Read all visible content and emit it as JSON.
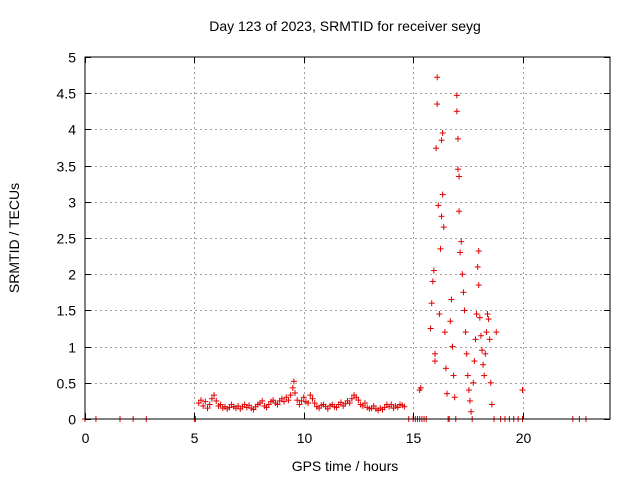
{
  "chart_data": {
    "type": "scatter",
    "title": "Day 123 of 2023, SRMTID for receiver seyg",
    "xlabel": "GPS time / hours",
    "ylabel": "SRMTID / TECUs",
    "xlim": [
      0,
      24
    ],
    "ylim": [
      0,
      5
    ],
    "xticks": [
      0,
      5,
      10,
      15,
      20
    ],
    "xtick_labels": [
      "0",
      "5",
      "10",
      "15",
      "20"
    ],
    "yticks": [
      0,
      0.5,
      1,
      1.5,
      2,
      2.5,
      3,
      3.5,
      4,
      4.5,
      5
    ],
    "ytick_labels": [
      "0",
      "0.5",
      "1",
      "1.5",
      "2",
      "2.5",
      "3",
      "3.5",
      "4",
      "4.5",
      "5"
    ],
    "grid": true,
    "marker": "+",
    "color": "#e00000",
    "series": [
      {
        "name": "SRMTID",
        "points": [
          [
            0.0,
            0.0
          ],
          [
            0.5,
            0.0
          ],
          [
            1.6,
            0.0
          ],
          [
            2.2,
            0.0
          ],
          [
            2.8,
            0.0
          ],
          [
            5.0,
            0.0
          ],
          [
            5.05,
            0.0
          ],
          [
            5.2,
            0.22
          ],
          [
            5.3,
            0.26
          ],
          [
            5.4,
            0.18
          ],
          [
            5.5,
            0.24
          ],
          [
            5.6,
            0.15
          ],
          [
            5.7,
            0.2
          ],
          [
            5.8,
            0.28
          ],
          [
            5.9,
            0.33
          ],
          [
            6.0,
            0.25
          ],
          [
            6.1,
            0.18
          ],
          [
            6.2,
            0.2
          ],
          [
            6.3,
            0.15
          ],
          [
            6.4,
            0.17
          ],
          [
            6.5,
            0.14
          ],
          [
            6.6,
            0.16
          ],
          [
            6.7,
            0.2
          ],
          [
            6.8,
            0.17
          ],
          [
            6.9,
            0.15
          ],
          [
            7.0,
            0.18
          ],
          [
            7.1,
            0.14
          ],
          [
            7.2,
            0.17
          ],
          [
            7.3,
            0.2
          ],
          [
            7.4,
            0.16
          ],
          [
            7.5,
            0.19
          ],
          [
            7.6,
            0.15
          ],
          [
            7.7,
            0.13
          ],
          [
            7.8,
            0.17
          ],
          [
            7.9,
            0.2
          ],
          [
            8.0,
            0.22
          ],
          [
            8.1,
            0.25
          ],
          [
            8.2,
            0.18
          ],
          [
            8.3,
            0.16
          ],
          [
            8.4,
            0.2
          ],
          [
            8.5,
            0.24
          ],
          [
            8.6,
            0.26
          ],
          [
            8.7,
            0.22
          ],
          [
            8.8,
            0.2
          ],
          [
            8.9,
            0.25
          ],
          [
            9.0,
            0.28
          ],
          [
            9.1,
            0.24
          ],
          [
            9.2,
            0.3
          ],
          [
            9.3,
            0.26
          ],
          [
            9.4,
            0.33
          ],
          [
            9.5,
            0.43
          ],
          [
            9.55,
            0.52
          ],
          [
            9.6,
            0.36
          ],
          [
            9.7,
            0.26
          ],
          [
            9.8,
            0.2
          ],
          [
            9.9,
            0.25
          ],
          [
            10.0,
            0.3
          ],
          [
            10.1,
            0.24
          ],
          [
            10.2,
            0.22
          ],
          [
            10.3,
            0.33
          ],
          [
            10.4,
            0.28
          ],
          [
            10.5,
            0.22
          ],
          [
            10.6,
            0.17
          ],
          [
            10.7,
            0.15
          ],
          [
            10.8,
            0.19
          ],
          [
            10.9,
            0.2
          ],
          [
            11.0,
            0.17
          ],
          [
            11.1,
            0.14
          ],
          [
            11.2,
            0.18
          ],
          [
            11.3,
            0.2
          ],
          [
            11.4,
            0.17
          ],
          [
            11.5,
            0.16
          ],
          [
            11.6,
            0.2
          ],
          [
            11.7,
            0.23
          ],
          [
            11.8,
            0.18
          ],
          [
            11.9,
            0.21
          ],
          [
            12.0,
            0.25
          ],
          [
            12.1,
            0.22
          ],
          [
            12.2,
            0.28
          ],
          [
            12.3,
            0.33
          ],
          [
            12.4,
            0.3
          ],
          [
            12.5,
            0.26
          ],
          [
            12.6,
            0.2
          ],
          [
            12.7,
            0.18
          ],
          [
            12.8,
            0.22
          ],
          [
            12.9,
            0.16
          ],
          [
            13.0,
            0.14
          ],
          [
            13.1,
            0.15
          ],
          [
            13.2,
            0.18
          ],
          [
            13.3,
            0.14
          ],
          [
            13.4,
            0.12
          ],
          [
            13.5,
            0.15
          ],
          [
            13.6,
            0.13
          ],
          [
            13.7,
            0.16
          ],
          [
            13.8,
            0.2
          ],
          [
            13.9,
            0.17
          ],
          [
            14.0,
            0.2
          ],
          [
            14.1,
            0.15
          ],
          [
            14.2,
            0.18
          ],
          [
            14.3,
            0.16
          ],
          [
            14.4,
            0.2
          ],
          [
            14.5,
            0.19
          ],
          [
            14.6,
            0.17
          ],
          [
            14.8,
            0.0
          ],
          [
            15.0,
            0.0
          ],
          [
            15.1,
            0.0
          ],
          [
            15.2,
            0.0
          ],
          [
            15.3,
            0.0
          ],
          [
            15.4,
            0.0
          ],
          [
            15.5,
            0.0
          ],
          [
            15.6,
            0.0
          ],
          [
            15.3,
            0.4
          ],
          [
            15.35,
            0.43
          ],
          [
            15.8,
            1.25
          ],
          [
            15.85,
            1.6
          ],
          [
            15.9,
            1.9
          ],
          [
            15.95,
            2.05
          ],
          [
            16.0,
            0.9
          ],
          [
            16.0,
            0.8
          ],
          [
            16.05,
            3.74
          ],
          [
            16.1,
            4.72
          ],
          [
            16.1,
            4.35
          ],
          [
            16.15,
            2.95
          ],
          [
            16.2,
            1.45
          ],
          [
            16.25,
            2.35
          ],
          [
            16.3,
            2.8
          ],
          [
            16.35,
            3.1
          ],
          [
            16.3,
            3.85
          ],
          [
            16.35,
            3.95
          ],
          [
            16.4,
            2.65
          ],
          [
            16.45,
            1.2
          ],
          [
            16.5,
            0.7
          ],
          [
            16.55,
            0.35
          ],
          [
            16.6,
            0.0
          ],
          [
            16.65,
            0.0
          ],
          [
            16.7,
            1.35
          ],
          [
            16.75,
            1.65
          ],
          [
            16.8,
            1.0
          ],
          [
            16.85,
            0.6
          ],
          [
            16.9,
            0.3
          ],
          [
            16.95,
            0.0
          ],
          [
            17.0,
            4.47
          ],
          [
            17.0,
            4.25
          ],
          [
            17.05,
            3.87
          ],
          [
            17.05,
            3.45
          ],
          [
            17.1,
            3.35
          ],
          [
            17.1,
            2.87
          ],
          [
            17.15,
            2.3
          ],
          [
            17.2,
            2.45
          ],
          [
            17.25,
            2.0
          ],
          [
            17.3,
            1.75
          ],
          [
            17.35,
            1.5
          ],
          [
            17.4,
            1.2
          ],
          [
            17.45,
            0.9
          ],
          [
            17.5,
            0.6
          ],
          [
            17.55,
            0.4
          ],
          [
            17.6,
            0.25
          ],
          [
            17.65,
            0.1
          ],
          [
            17.7,
            0.0
          ],
          [
            17.75,
            0.5
          ],
          [
            17.8,
            0.8
          ],
          [
            17.85,
            1.1
          ],
          [
            17.9,
            1.45
          ],
          [
            17.95,
            2.1
          ],
          [
            18.0,
            2.32
          ],
          [
            18.0,
            1.85
          ],
          [
            18.05,
            1.4
          ],
          [
            18.1,
            1.15
          ],
          [
            18.15,
            0.95
          ],
          [
            18.2,
            0.75
          ],
          [
            18.25,
            0.6
          ],
          [
            18.3,
            0.9
          ],
          [
            18.35,
            1.2
          ],
          [
            18.4,
            1.45
          ],
          [
            18.45,
            1.38
          ],
          [
            18.5,
            1.1
          ],
          [
            18.55,
            0.5
          ],
          [
            18.6,
            0.2
          ],
          [
            18.7,
            0.0
          ],
          [
            18.8,
            1.2
          ],
          [
            19.0,
            0.0
          ],
          [
            19.2,
            0.0
          ],
          [
            19.4,
            0.0
          ],
          [
            19.6,
            0.0
          ],
          [
            19.8,
            0.0
          ],
          [
            20.0,
            0.4
          ],
          [
            20.0,
            0.0
          ],
          [
            22.3,
            0.0
          ],
          [
            22.6,
            0.0
          ],
          [
            22.9,
            0.0
          ]
        ]
      }
    ]
  }
}
